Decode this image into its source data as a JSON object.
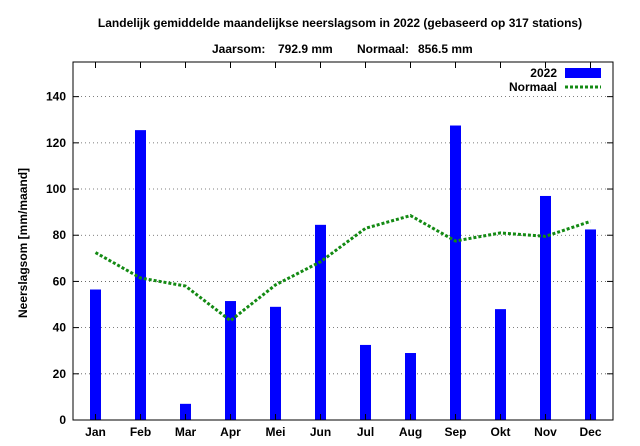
{
  "chart_data": {
    "type": "bar",
    "title": "Landelijk gemiddelde maandelijkse neerslagsom in 2022 (gebaseerd op 317 stations)",
    "subtitle": {
      "jaarsom_label": "Jaarsom:",
      "jaarsom_value": "792.9 mm",
      "normaal_label": "Normaal:",
      "normaal_value": "856.5 mm"
    },
    "xlabel": "",
    "ylabel": "Neerslagsom [mm/maand]",
    "ylim": [
      0,
      155
    ],
    "yticks": [
      0,
      20,
      40,
      60,
      80,
      100,
      120,
      140
    ],
    "categories": [
      "Jan",
      "Feb",
      "Mar",
      "Apr",
      "Mei",
      "Jun",
      "Jul",
      "Aug",
      "Sep",
      "Okt",
      "Nov",
      "Dec"
    ],
    "series": [
      {
        "name": "2022",
        "kind": "bar",
        "color": "#0000ff",
        "values": [
          56.5,
          125.5,
          7,
          51.5,
          49,
          84.5,
          32.5,
          29,
          127.5,
          48,
          97,
          82.5
        ]
      },
      {
        "name": "Normaal",
        "kind": "line",
        "style": "dashed",
        "color": "#138a13",
        "values": [
          72.5,
          61.5,
          58,
          43,
          58.5,
          68.5,
          83,
          88.5,
          77.5,
          81,
          79.5,
          86
        ]
      }
    ],
    "grid": "horizontal dotted",
    "legend": "top-right"
  }
}
